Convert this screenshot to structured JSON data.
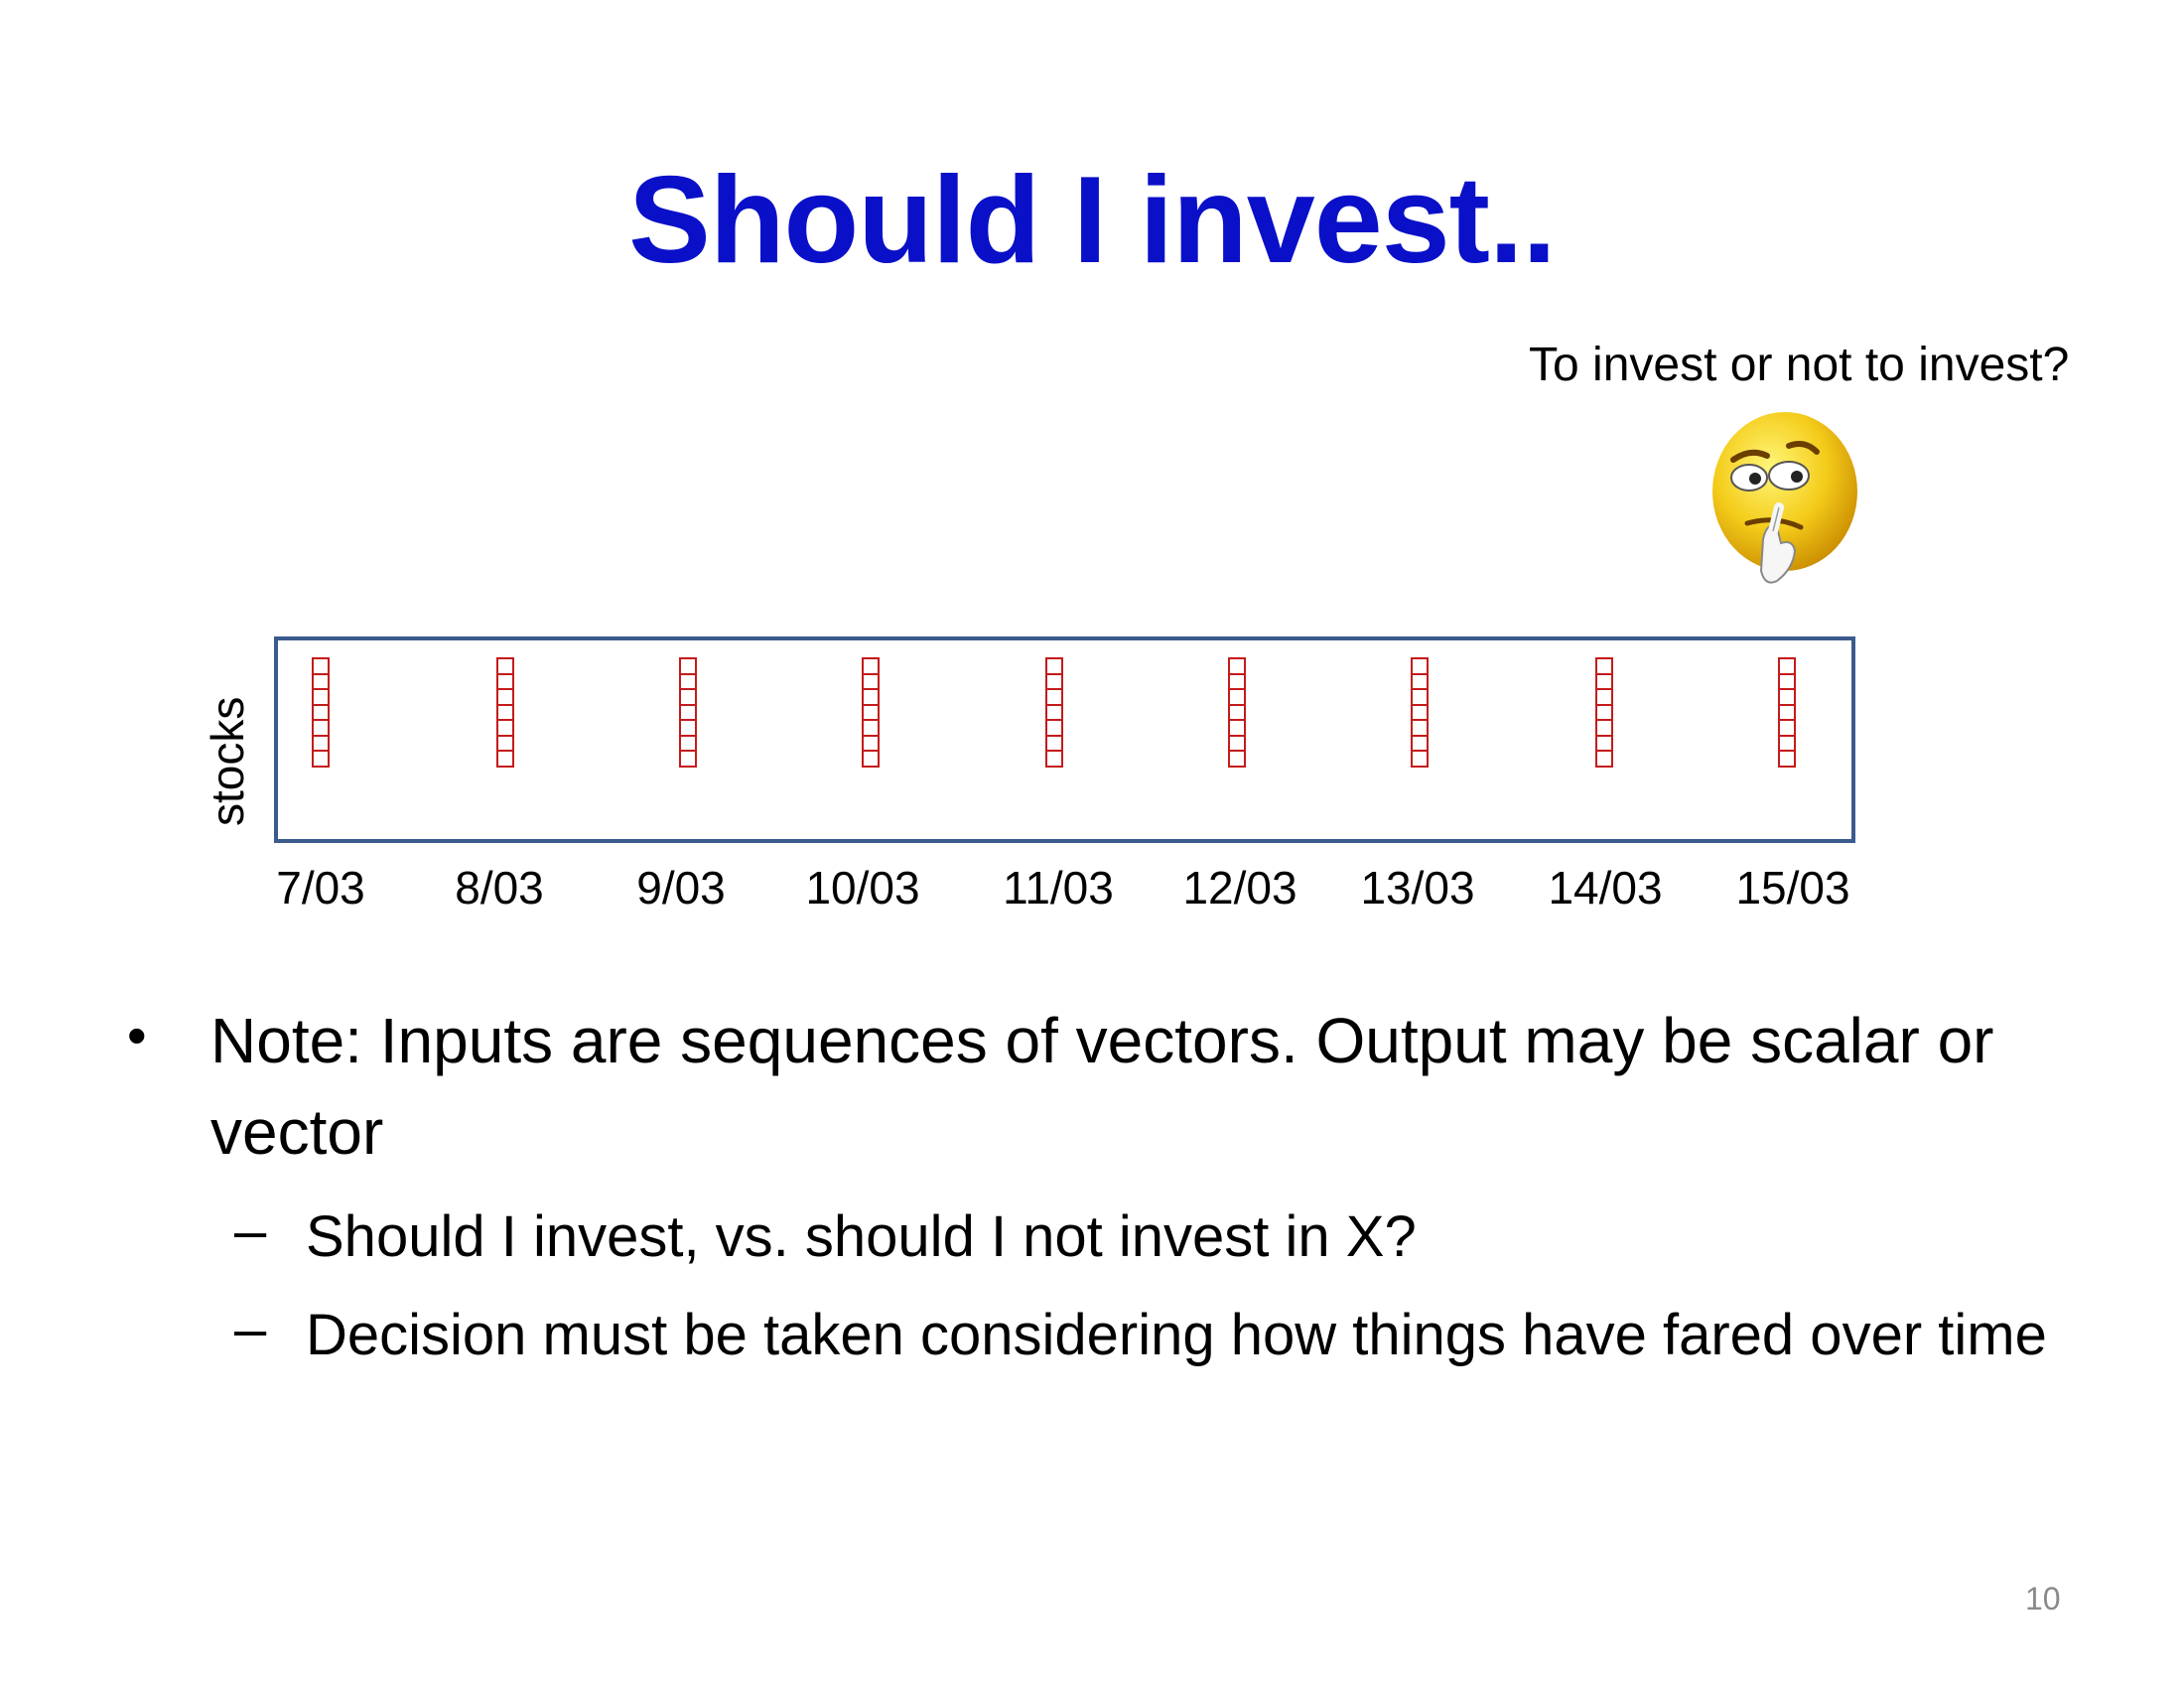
{
  "slide": {
    "title": "Should I invest..",
    "caption": "To invest or not to invest?",
    "figure_icon": "thinking-face-icon",
    "y_axis_label": "stocks",
    "dates": [
      "7/03",
      "8/03",
      "9/03",
      "10/03",
      "11/03",
      "12/03",
      "13/03",
      "14/03",
      "15/03"
    ],
    "vector_length": 7,
    "colors": {
      "title": "#0a10c8",
      "vector": "#c51a1a",
      "frame": "#3b5a8e"
    },
    "bullet": {
      "marker": "•",
      "text": "Note: Inputs are sequences of vectors.  Output may be scalar or vector"
    },
    "sub_bullets": [
      {
        "marker": "–",
        "text": "Should I invest, vs. should I not invest in X?"
      },
      {
        "marker": "–",
        "text": "Decision must be taken considering how things have fared over time"
      }
    ],
    "page_number": "10"
  }
}
